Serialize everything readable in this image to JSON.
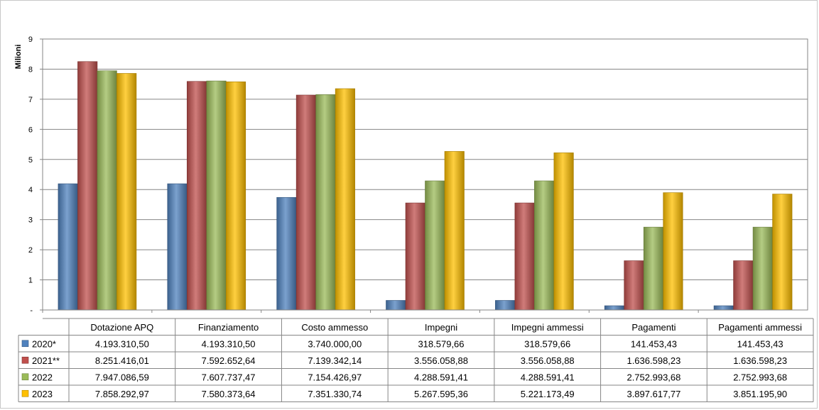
{
  "chart_data": {
    "type": "bar",
    "ylabel": "Milioni",
    "ylim": [
      0,
      9
    ],
    "yticks": [
      "-",
      "1",
      "2",
      "3",
      "4",
      "5",
      "6",
      "7",
      "8",
      "9"
    ],
    "grid": true,
    "legend": "data-table-left",
    "categories": [
      "Dotazione APQ",
      "Finanziamento",
      "Costo ammesso",
      "Impegni",
      "Impegni ammessi",
      "Pagamenti",
      "Pagamenti ammessi"
    ],
    "series": [
      {
        "name": "2020*",
        "color": "#4f81bd",
        "values": [
          4193310.5,
          4193310.5,
          3740000.0,
          318579.66,
          318579.66,
          141453.43,
          141453.43
        ],
        "labels": [
          "4.193.310,50",
          "4.193.310,50",
          "3.740.000,00",
          "318.579,66",
          "318.579,66",
          "141.453,43",
          "141.453,43"
        ]
      },
      {
        "name": "2021**",
        "color": "#c0504d",
        "values": [
          8251416.01,
          7592652.64,
          7139342.14,
          3556058.88,
          3556058.88,
          1636598.23,
          1636598.23
        ],
        "labels": [
          "8.251.416,01",
          "7.592.652,64",
          "7.139.342,14",
          "3.556.058,88",
          "3.556.058,88",
          "1.636.598,23",
          "1.636.598,23"
        ]
      },
      {
        "name": "2022",
        "color": "#9bbb59",
        "values": [
          7947086.59,
          7607737.47,
          7154426.97,
          4288591.41,
          4288591.41,
          2752993.68,
          2752993.68
        ],
        "labels": [
          "7.947.086,59",
          "7.607.737,47",
          "7.154.426,97",
          "4.288.591,41",
          "4.288.591,41",
          "2.752.993,68",
          "2.752.993,68"
        ]
      },
      {
        "name": "2023",
        "color": "#ffc000",
        "values": [
          7858292.97,
          7580373.64,
          7351330.74,
          5267595.36,
          5221173.49,
          3897617.77,
          3851195.9
        ],
        "labels": [
          "7.858.292,97",
          "7.580.373,64",
          "7.351.330,74",
          "5.267.595,36",
          "5.221.173,49",
          "3.897.617,77",
          "3.851.195,90"
        ]
      }
    ]
  }
}
